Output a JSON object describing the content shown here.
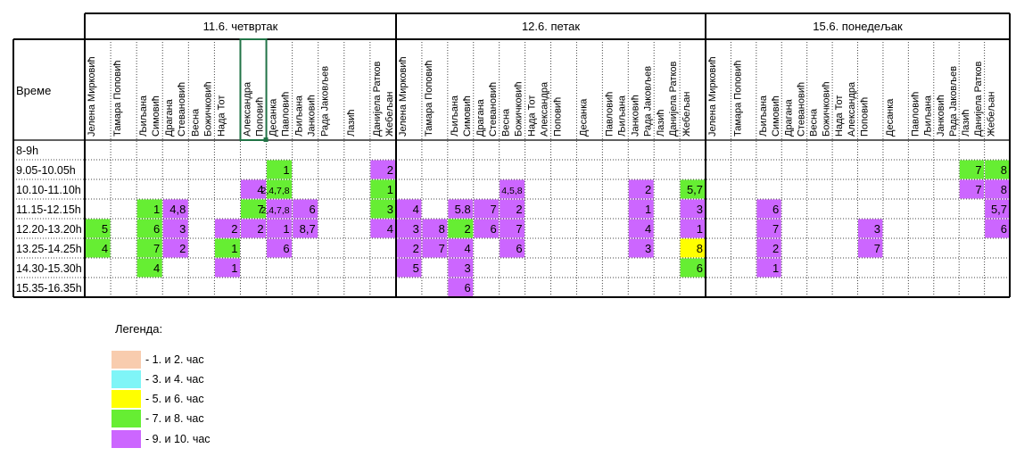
{
  "colors": {
    "peach": "#f8ccae",
    "cyan": "#7ff5f7",
    "yellow": "#ffff00",
    "green": "#66ee33",
    "purple": "#cc66ff"
  },
  "table": {
    "time_header": "Време",
    "rows": [
      "8-9h",
      "9.05-10.05h",
      "10.10-11.10h",
      "11.15-12.15h",
      "12.20-13.20h",
      "13.25-14.25h",
      "14.30-15.30h",
      "15.35-16.35h"
    ],
    "days": [
      {
        "label": "11.6. четвртак",
        "teachers": [
          [
            "Јелена Мирковић"
          ],
          [
            "Тамара Поповић"
          ],
          [
            "Љиљана",
            "Симовић"
          ],
          [
            "Драгана",
            "Стевановић"
          ],
          [
            "Весна",
            "Божичковић"
          ],
          [
            "Нада Тот"
          ],
          [
            "Александра",
            "Поповић"
          ],
          [
            "Десанка",
            "Павловић"
          ],
          [
            "Љиљана",
            "Јанковић"
          ],
          [
            "Рада Јаковљев"
          ],
          [
            "Лазић"
          ],
          [
            "Данијела Ратков",
            "Жебељан"
          ]
        ],
        "cells": [
          {
            "row": 1,
            "col": 7,
            "text": "1",
            "color": "green"
          },
          {
            "row": 1,
            "col": 11,
            "text": "2",
            "color": "purple"
          },
          {
            "row": 2,
            "col": 6,
            "text": "4",
            "color": "purple"
          },
          {
            "row": 2,
            "col": 7,
            "text": "2,4,7,8",
            "color": "green"
          },
          {
            "row": 2,
            "col": 11,
            "text": "1",
            "color": "green"
          },
          {
            "row": 3,
            "col": 2,
            "text": "1",
            "color": "green"
          },
          {
            "row": 3,
            "col": 3,
            "text": "4,8",
            "color": "purple"
          },
          {
            "row": 3,
            "col": 6,
            "text": "7",
            "color": "green"
          },
          {
            "row": 3,
            "col": 7,
            "text": "2,4,7,8",
            "color": "purple"
          },
          {
            "row": 3,
            "col": 8,
            "text": "6",
            "color": "purple"
          },
          {
            "row": 3,
            "col": 11,
            "text": "3",
            "color": "green"
          },
          {
            "row": 4,
            "col": 0,
            "text": "5",
            "color": "green"
          },
          {
            "row": 4,
            "col": 2,
            "text": "6",
            "color": "green"
          },
          {
            "row": 4,
            "col": 3,
            "text": "3",
            "color": "purple"
          },
          {
            "row": 4,
            "col": 5,
            "text": "2",
            "color": "purple"
          },
          {
            "row": 4,
            "col": 6,
            "text": "2",
            "color": "purple"
          },
          {
            "row": 4,
            "col": 7,
            "text": "1",
            "color": "purple"
          },
          {
            "row": 4,
            "col": 8,
            "text": "8,7",
            "color": "purple"
          },
          {
            "row": 4,
            "col": 11,
            "text": "4",
            "color": "purple"
          },
          {
            "row": 5,
            "col": 0,
            "text": "4",
            "color": "green"
          },
          {
            "row": 5,
            "col": 2,
            "text": "7",
            "color": "green"
          },
          {
            "row": 5,
            "col": 3,
            "text": "2",
            "color": "purple"
          },
          {
            "row": 5,
            "col": 5,
            "text": "1",
            "color": "green"
          },
          {
            "row": 5,
            "col": 7,
            "text": "6",
            "color": "purple"
          },
          {
            "row": 6,
            "col": 2,
            "text": "4",
            "color": "green"
          },
          {
            "row": 6,
            "col": 5,
            "text": "1",
            "color": "purple"
          }
        ]
      },
      {
        "label": "12.6. петак",
        "teachers": [
          [
            "Јелена Мирковић"
          ],
          [
            "Тамара Поповић"
          ],
          [
            "Љиљана",
            "Симовић"
          ],
          [
            "Драгана",
            "Стевановић"
          ],
          [
            "Весна",
            "Божичковић"
          ],
          [
            "Нада Тот",
            "Александра"
          ],
          [
            "Поповић"
          ],
          [
            "Десанка"
          ],
          [
            "Павловић",
            "Љиљана"
          ],
          [
            "Јанковић",
            "Рада Јаковљев"
          ],
          [
            "Лазић",
            "Данијела Ратков"
          ],
          [
            "Жебељан"
          ]
        ],
        "cells": [
          {
            "row": 2,
            "col": 4,
            "text": "4,5,8",
            "color": "purple"
          },
          {
            "row": 2,
            "col": 9,
            "text": "2",
            "color": "purple"
          },
          {
            "row": 2,
            "col": 11,
            "text": "5,7",
            "color": "green"
          },
          {
            "row": 3,
            "col": 0,
            "text": "4",
            "color": "purple"
          },
          {
            "row": 3,
            "col": 2,
            "text": "5.8",
            "color": "purple"
          },
          {
            "row": 3,
            "col": 3,
            "text": "7",
            "color": "purple"
          },
          {
            "row": 3,
            "col": 4,
            "text": "2",
            "color": "purple"
          },
          {
            "row": 3,
            "col": 9,
            "text": "1",
            "color": "purple"
          },
          {
            "row": 3,
            "col": 11,
            "text": "3",
            "color": "purple"
          },
          {
            "row": 4,
            "col": 0,
            "text": "3",
            "color": "purple"
          },
          {
            "row": 4,
            "col": 1,
            "text": "8",
            "color": "purple"
          },
          {
            "row": 4,
            "col": 2,
            "text": "2",
            "color": "green"
          },
          {
            "row": 4,
            "col": 3,
            "text": "6",
            "color": "purple"
          },
          {
            "row": 4,
            "col": 4,
            "text": "7",
            "color": "purple"
          },
          {
            "row": 4,
            "col": 9,
            "text": "4",
            "color": "purple"
          },
          {
            "row": 4,
            "col": 11,
            "text": "1",
            "color": "purple"
          },
          {
            "row": 5,
            "col": 0,
            "text": "2",
            "color": "purple"
          },
          {
            "row": 5,
            "col": 1,
            "text": "7",
            "color": "purple"
          },
          {
            "row": 5,
            "col": 2,
            "text": "4",
            "color": "purple"
          },
          {
            "row": 5,
            "col": 4,
            "text": "6",
            "color": "purple"
          },
          {
            "row": 5,
            "col": 9,
            "text": "3",
            "color": "purple"
          },
          {
            "row": 5,
            "col": 11,
            "text": "8",
            "color": "yellow"
          },
          {
            "row": 6,
            "col": 0,
            "text": "5",
            "color": "purple"
          },
          {
            "row": 6,
            "col": 2,
            "text": "3",
            "color": "purple"
          },
          {
            "row": 6,
            "col": 11,
            "text": "6",
            "color": "green"
          },
          {
            "row": 7,
            "col": 2,
            "text": "6",
            "color": "purple"
          }
        ]
      },
      {
        "label": "15.6. понедељак",
        "teachers": [
          [
            "Јелена Мирковић"
          ],
          [
            "Тамара Поповић"
          ],
          [
            "Љиљана",
            "Симовић"
          ],
          [
            "Драгана",
            "Стевановић"
          ],
          [
            "Весна",
            "Божичковић"
          ],
          [
            "Нада Тот",
            "Александра"
          ],
          [
            "Поповић"
          ],
          [
            "Десанка"
          ],
          [
            "Павловић",
            "Љиљана"
          ],
          [
            "Јанковић",
            "Рада Јаковљев"
          ],
          [
            "Лазић",
            "Данијела Ратков"
          ],
          [
            "Жебељан"
          ]
        ],
        "cells": [
          {
            "row": 1,
            "col": 10,
            "text": "7",
            "color": "green"
          },
          {
            "row": 1,
            "col": 11,
            "text": "8",
            "color": "green"
          },
          {
            "row": 2,
            "col": 10,
            "text": "7",
            "color": "purple"
          },
          {
            "row": 2,
            "col": 11,
            "text": "8",
            "color": "purple"
          },
          {
            "row": 3,
            "col": 2,
            "text": "6",
            "color": "purple"
          },
          {
            "row": 3,
            "col": 11,
            "text": "5,7",
            "color": "purple"
          },
          {
            "row": 4,
            "col": 2,
            "text": "7",
            "color": "purple"
          },
          {
            "row": 4,
            "col": 6,
            "text": "3",
            "color": "purple"
          },
          {
            "row": 4,
            "col": 11,
            "text": "6",
            "color": "purple"
          },
          {
            "row": 5,
            "col": 2,
            "text": "2",
            "color": "purple"
          },
          {
            "row": 5,
            "col": 6,
            "text": "7",
            "color": "purple"
          },
          {
            "row": 6,
            "col": 2,
            "text": "1",
            "color": "purple"
          }
        ]
      }
    ]
  },
  "legend": {
    "title": "Легенда:",
    "items": [
      {
        "label": "- 1. и 2. час",
        "color": "peach"
      },
      {
        "label": "- 3. и 4. час",
        "color": "cyan"
      },
      {
        "label": "- 5. и 6. час",
        "color": "yellow"
      },
      {
        "label": "- 7. и 8. час",
        "color": "green"
      },
      {
        "label": "- 9. и 10. час",
        "color": "purple"
      }
    ]
  }
}
